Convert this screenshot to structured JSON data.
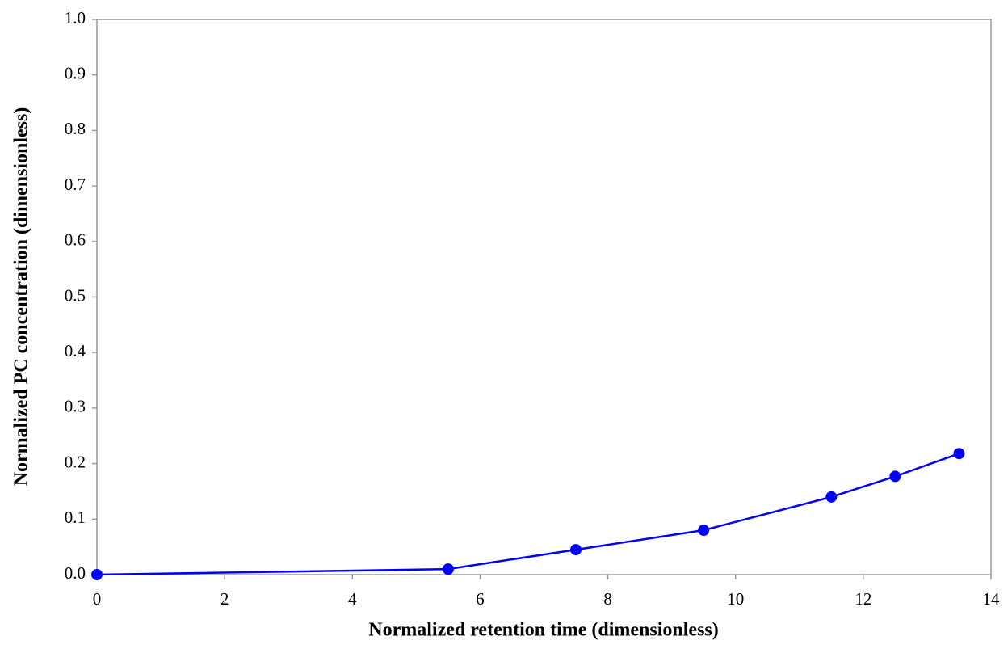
{
  "chart_data": {
    "type": "line",
    "x_label": "Normalized retention time (dimensionless)",
    "y_label": "Normalized PC concentration (dimensionless)",
    "x": [
      0,
      5.5,
      7.5,
      9.5,
      11.5,
      12.5,
      13.5
    ],
    "series": [
      {
        "name": null,
        "color": "#0000ff",
        "values": [
          0,
          0.01,
          0.045,
          0.08,
          0.14,
          0.177,
          0.218
        ]
      }
    ],
    "xlim": [
      0,
      14
    ],
    "xticks": [
      0,
      2,
      4,
      6,
      8,
      10,
      12,
      14
    ],
    "ylim": [
      0,
      1
    ],
    "yticks": [
      {
        "value": 0,
        "label": "0.0"
      },
      0.1,
      0.2,
      0.3,
      0.4,
      0.5,
      0.6,
      0.7,
      0.8,
      0.9,
      {
        "value": 1,
        "label": "1.0"
      }
    ],
    "grid": false
  }
}
